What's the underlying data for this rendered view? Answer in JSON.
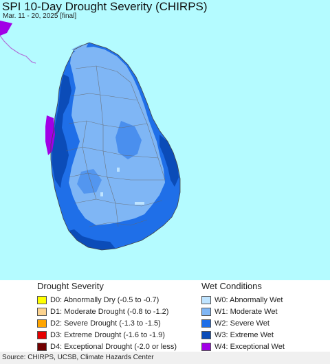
{
  "map": {
    "title": "SPI 10-Day Drought Severity (CHIRPS)",
    "subtitle": "Mar. 11 - 20, 2025 [final]",
    "colors": {
      "ocean": "#b4fbff",
      "w1": "#7fb6f5",
      "w2": "#1f6fe8",
      "w3": "#0b4cb8",
      "w4": "#a100e6",
      "w0": "#bfe4ff",
      "boundary": "#666666"
    }
  },
  "legend": {
    "drought": {
      "heading": "Drought Severity",
      "items": [
        {
          "label": "D0: Abnormally Dry (-0.5 to -0.7)",
          "color": "#ffff00"
        },
        {
          "label": "D1: Moderate Drought (-0.8 to -1.2)",
          "color": "#fcd38f"
        },
        {
          "label": "D2: Severe Drought (-1.3 to -1.5)",
          "color": "#ffa500"
        },
        {
          "label": "D3: Extreme Drought (-1.6 to -1.9)",
          "color": "#e60000"
        },
        {
          "label": "D4: Exceptional Drought (-2.0 or less)",
          "color": "#730000"
        }
      ]
    },
    "wet": {
      "heading": "Wet Conditions",
      "items": [
        {
          "label": "W0: Abnormally Wet",
          "color": "#bfe4ff"
        },
        {
          "label": "W1: Moderate Wet",
          "color": "#7fb6f5"
        },
        {
          "label": "W2: Severe Wet",
          "color": "#1f6fe8"
        },
        {
          "label": "W3: Extreme Wet",
          "color": "#0b4cb8"
        },
        {
          "label": "W4: Exceptional Wet",
          "color": "#a100e6"
        }
      ]
    }
  },
  "source": "Source: CHIRPS, UCSB, Climate Hazards Center"
}
